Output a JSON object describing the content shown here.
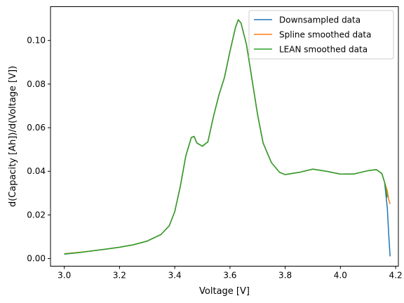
{
  "chart_data": {
    "type": "line",
    "title": "",
    "xlabel": "Voltage [V]",
    "ylabel": "d(Capacity [Ah])/d(Voltage [V])",
    "xlim": [
      2.95,
      4.21
    ],
    "ylim": [
      -0.0035,
      0.1155
    ],
    "xticks": [
      3.0,
      3.2,
      3.4,
      3.6,
      3.8,
      4.0,
      4.2
    ],
    "xtick_labels": [
      "3.0",
      "3.2",
      "3.4",
      "3.6",
      "3.8",
      "4.0",
      "4.2"
    ],
    "yticks": [
      0.0,
      0.02,
      0.04,
      0.06,
      0.08,
      0.1
    ],
    "ytick_labels": [
      "0.00",
      "0.02",
      "0.04",
      "0.06",
      "0.08",
      "0.10"
    ],
    "grid": false,
    "legend_position": "top-right",
    "series": [
      {
        "name": "Downsampled data",
        "color": "#1f77b4",
        "x": [
          3.0,
          3.05,
          3.1,
          3.15,
          3.2,
          3.25,
          3.3,
          3.35,
          3.38,
          3.4,
          3.42,
          3.44,
          3.46,
          3.47,
          3.48,
          3.5,
          3.52,
          3.54,
          3.56,
          3.58,
          3.6,
          3.62,
          3.63,
          3.64,
          3.66,
          3.68,
          3.7,
          3.72,
          3.75,
          3.78,
          3.8,
          3.85,
          3.9,
          3.95,
          4.0,
          4.05,
          4.1,
          4.13,
          4.15,
          4.16,
          4.17,
          4.175,
          4.18
        ],
        "y": [
          0.002,
          0.0027,
          0.0035,
          0.0043,
          0.0052,
          0.0063,
          0.008,
          0.011,
          0.015,
          0.0215,
          0.033,
          0.047,
          0.0555,
          0.056,
          0.053,
          0.0515,
          0.0535,
          0.065,
          0.075,
          0.083,
          0.095,
          0.106,
          0.1095,
          0.108,
          0.098,
          0.082,
          0.066,
          0.053,
          0.044,
          0.0395,
          0.0385,
          0.0395,
          0.041,
          0.04,
          0.0387,
          0.0388,
          0.0403,
          0.0408,
          0.039,
          0.035,
          0.023,
          0.011,
          0.001
        ]
      },
      {
        "name": "Spline smoothed data",
        "color": "#ff7f0e",
        "x": [
          3.0,
          3.05,
          3.1,
          3.15,
          3.2,
          3.25,
          3.3,
          3.35,
          3.38,
          3.4,
          3.42,
          3.44,
          3.46,
          3.47,
          3.48,
          3.5,
          3.52,
          3.54,
          3.56,
          3.58,
          3.6,
          3.62,
          3.63,
          3.64,
          3.66,
          3.68,
          3.7,
          3.72,
          3.75,
          3.78,
          3.8,
          3.85,
          3.9,
          3.95,
          4.0,
          4.05,
          4.1,
          4.13,
          4.15,
          4.16,
          4.17,
          4.175,
          4.18
        ],
        "y": [
          0.0022,
          0.0028,
          0.0035,
          0.0043,
          0.0052,
          0.0063,
          0.008,
          0.011,
          0.015,
          0.0215,
          0.033,
          0.047,
          0.0555,
          0.056,
          0.053,
          0.0515,
          0.0535,
          0.065,
          0.075,
          0.083,
          0.095,
          0.106,
          0.1095,
          0.108,
          0.098,
          0.082,
          0.066,
          0.053,
          0.044,
          0.0395,
          0.0385,
          0.0395,
          0.041,
          0.04,
          0.0387,
          0.0388,
          0.0403,
          0.0408,
          0.039,
          0.035,
          0.031,
          0.027,
          0.025
        ]
      },
      {
        "name": "LEAN smoothed data",
        "color": "#2ca02c",
        "x": [
          3.0,
          3.05,
          3.1,
          3.15,
          3.2,
          3.25,
          3.3,
          3.35,
          3.38,
          3.4,
          3.42,
          3.44,
          3.46,
          3.47,
          3.48,
          3.5,
          3.52,
          3.54,
          3.56,
          3.58,
          3.6,
          3.62,
          3.63,
          3.64,
          3.66,
          3.68,
          3.7,
          3.72,
          3.75,
          3.78,
          3.8,
          3.85,
          3.9,
          3.95,
          4.0,
          4.05,
          4.1,
          4.13,
          4.15,
          4.16,
          4.17
        ],
        "y": [
          0.0021,
          0.0027,
          0.0035,
          0.0043,
          0.0052,
          0.0063,
          0.008,
          0.011,
          0.015,
          0.0215,
          0.033,
          0.047,
          0.0555,
          0.056,
          0.053,
          0.0515,
          0.0535,
          0.065,
          0.075,
          0.083,
          0.095,
          0.106,
          0.1095,
          0.108,
          0.098,
          0.082,
          0.066,
          0.053,
          0.044,
          0.0395,
          0.0385,
          0.0395,
          0.041,
          0.04,
          0.0387,
          0.0388,
          0.0403,
          0.0408,
          0.039,
          0.035,
          0.028
        ]
      }
    ]
  }
}
